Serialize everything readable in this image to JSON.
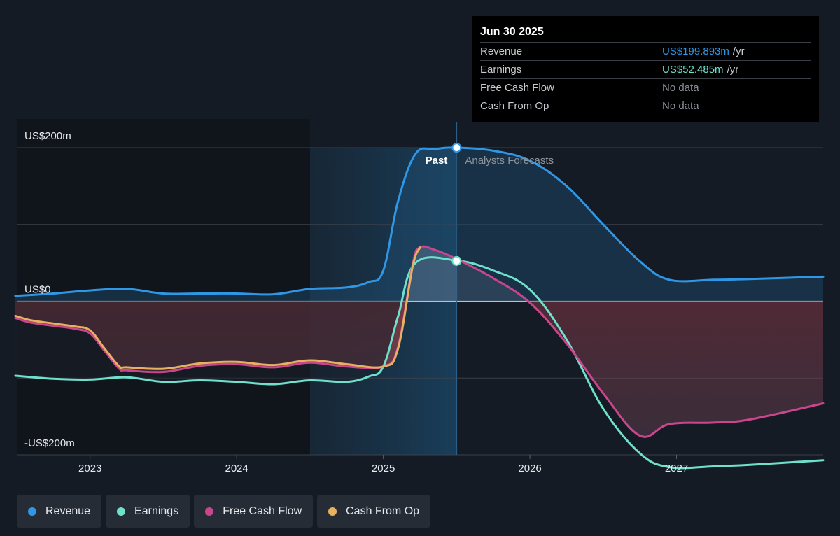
{
  "colors": {
    "revenue": "#2f97e5",
    "earnings": "#6fe0cc",
    "free_cash_flow": "#c9468c",
    "cash_from_op": "#e8b062"
  },
  "tooltip": {
    "date": "Jun 30 2025",
    "rows": [
      {
        "label": "Revenue",
        "value": "US$199.893m",
        "unit": "/yr",
        "color": "#2f97e5"
      },
      {
        "label": "Earnings",
        "value": "US$52.485m",
        "unit": "/yr",
        "color": "#6fe0cc"
      },
      {
        "label": "Free Cash Flow",
        "value": "No data",
        "unit": "",
        "color": "#8a8f96"
      },
      {
        "label": "Cash From Op",
        "value": "No data",
        "unit": "",
        "color": "#8a8f96"
      }
    ]
  },
  "legend": [
    {
      "label": "Revenue",
      "color": "#2f97e5"
    },
    {
      "label": "Earnings",
      "color": "#6fe0cc"
    },
    {
      "label": "Free Cash Flow",
      "color": "#c9468c"
    },
    {
      "label": "Cash From Op",
      "color": "#e8b062"
    }
  ],
  "chart_data": {
    "type": "line",
    "title": "",
    "xlabel": "",
    "ylabel": "",
    "y_unit": "US$m",
    "ylim": [
      -200,
      200
    ],
    "xlim": [
      2022.5,
      2028.0
    ],
    "y_tick_labels": [
      {
        "value": 200,
        "label": "US$200m"
      },
      {
        "value": 0,
        "label": "US$0"
      },
      {
        "value": -200,
        "label": "-US$200m"
      }
    ],
    "x_ticks": [
      2023,
      2024,
      2025,
      2026,
      2027
    ],
    "x_tick_labels": [
      "2023",
      "2024",
      "2025",
      "2026",
      "2027"
    ],
    "grid": true,
    "past_label": "Past",
    "forecast_label": "Analysts Forecasts",
    "divider_x": 2025.5,
    "highlight_range": [
      2024.5,
      2025.5
    ],
    "series": [
      {
        "name": "Revenue",
        "key": "revenue",
        "x": [
          2022.49,
          2022.75,
          2023.0,
          2023.25,
          2023.5,
          2023.75,
          2024.0,
          2024.25,
          2024.5,
          2024.75,
          2024.9,
          2025.0,
          2025.1,
          2025.22,
          2025.35,
          2025.5,
          2025.75,
          2026.0,
          2026.25,
          2026.5,
          2026.75,
          2026.95,
          2027.25,
          2027.5,
          2028.0
        ],
        "y": [
          7,
          10,
          14,
          16,
          10,
          10,
          10,
          9,
          16,
          18,
          25,
          40,
          130,
          192,
          198,
          200,
          196,
          183,
          150,
          100,
          52,
          28,
          28,
          29,
          32
        ]
      },
      {
        "name": "Earnings",
        "key": "earnings",
        "x": [
          2022.49,
          2022.75,
          2023.0,
          2023.25,
          2023.5,
          2023.75,
          2024.0,
          2024.25,
          2024.5,
          2024.75,
          2024.9,
          2025.0,
          2025.1,
          2025.22,
          2025.5,
          2025.75,
          2026.0,
          2026.25,
          2026.5,
          2026.75,
          2026.95,
          2027.25,
          2027.5,
          2028.0
        ],
        "y": [
          -97,
          -101,
          -102,
          -99,
          -105,
          -103,
          -105,
          -108,
          -103,
          -105,
          -98,
          -85,
          -20,
          50,
          53,
          40,
          15,
          -50,
          -140,
          -198,
          -216,
          -215,
          -213,
          -207
        ]
      },
      {
        "name": "Free Cash Flow",
        "key": "free_cash_flow",
        "x": [
          2022.49,
          2022.6,
          2022.75,
          2022.9,
          2023.0,
          2023.1,
          2023.2,
          2023.25,
          2023.5,
          2023.75,
          2024.0,
          2024.25,
          2024.5,
          2024.75,
          2025.0,
          2025.1,
          2025.2,
          2025.25,
          2025.35,
          2025.5,
          2025.75,
          2026.0,
          2026.25,
          2026.5,
          2026.75,
          2026.95,
          2027.25,
          2027.5,
          2028.0
        ],
        "y": [
          -22,
          -28,
          -32,
          -36,
          -42,
          -65,
          -88,
          -90,
          -92,
          -84,
          -82,
          -86,
          -80,
          -85,
          -85,
          -60,
          48,
          70,
          67,
          55,
          30,
          -2,
          -55,
          -120,
          -175,
          -160,
          -158,
          -154,
          -133
        ]
      },
      {
        "name": "Cash From Op",
        "key": "cash_from_op",
        "x": [
          2022.49,
          2022.6,
          2022.75,
          2022.9,
          2023.0,
          2023.1,
          2023.2,
          2023.25,
          2023.5,
          2023.75,
          2024.0,
          2024.25,
          2024.5,
          2024.75,
          2025.0,
          2025.1,
          2025.2,
          2025.25
        ],
        "y": [
          -19,
          -25,
          -29,
          -33,
          -38,
          -62,
          -85,
          -86,
          -88,
          -81,
          -79,
          -83,
          -77,
          -82,
          -85,
          -62,
          45,
          70
        ]
      }
    ]
  }
}
